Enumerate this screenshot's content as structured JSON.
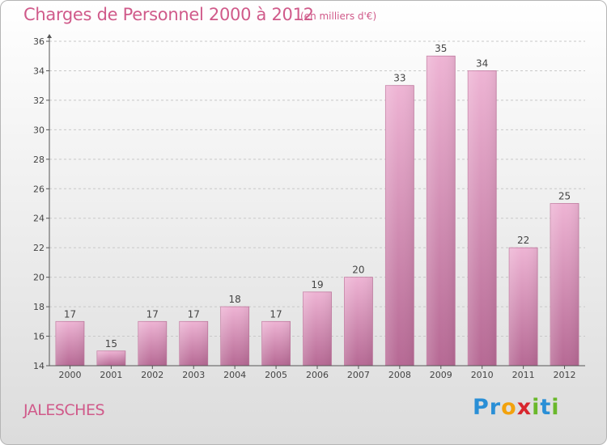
{
  "title": "Charges de Personnel 2000 à 2012",
  "subtitle": "(en milliers d'€)",
  "commune": "JALESCHES",
  "logo": {
    "letters": [
      "P",
      "r",
      "o",
      "x",
      "i",
      "t",
      "i"
    ],
    "colors": [
      "#2a8fd6",
      "#2a8fd6",
      "#f2a20d",
      "#d8262e",
      "#6ab82b",
      "#2a8fd6",
      "#6ab82b"
    ]
  },
  "colors": {
    "title": "#d05a8a",
    "bar_top": "#eeb4d4",
    "bar_bottom": "#b66994",
    "bar_stroke": "#c27aa0",
    "axis": "#555555",
    "grid": "#c8c8c8"
  },
  "chart_data": {
    "type": "bar",
    "categories": [
      "2000",
      "2001",
      "2002",
      "2003",
      "2004",
      "2005",
      "2006",
      "2007",
      "2008",
      "2009",
      "2010",
      "2011",
      "2012"
    ],
    "values": [
      17,
      15,
      17,
      17,
      18,
      17,
      19,
      20,
      33,
      35,
      34,
      22,
      25
    ],
    "ylim": [
      14,
      36
    ],
    "yticks": [
      14,
      16,
      18,
      20,
      22,
      24,
      26,
      28,
      30,
      32,
      34,
      36
    ],
    "grid": true,
    "xlabel": "",
    "ylabel": ""
  }
}
